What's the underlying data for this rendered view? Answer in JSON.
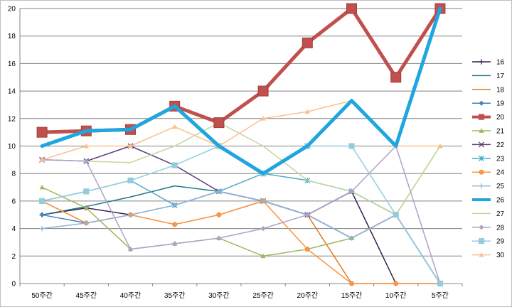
{
  "chart_data": {
    "type": "line",
    "title": "",
    "xlabel": "",
    "ylabel": "",
    "x": [
      "50주간",
      "45주간",
      "40주간",
      "35주간",
      "30주간",
      "25주간",
      "20주간",
      "15주간",
      "10주간",
      "5주간"
    ],
    "ylim": [
      0,
      20
    ],
    "yticks": [
      0,
      2,
      4,
      6,
      8,
      10,
      12,
      14,
      16,
      18,
      20
    ],
    "grid": true,
    "legend_position": "right",
    "series": [
      {
        "name": "16",
        "color": "#3b1f4e",
        "marker": "plus",
        "width": 1.5,
        "values": [
          5,
          5.5,
          5,
          null,
          null,
          6,
          5,
          6.7,
          0,
          null
        ]
      },
      {
        "name": "17",
        "color": "#1f7a8c",
        "marker": "none",
        "width": 1.5,
        "values": [
          5,
          5.6,
          6.3,
          7.1,
          6.7,
          6,
          5,
          3.3,
          5,
          0
        ]
      },
      {
        "name": "18",
        "color": "#e07b20",
        "marker": "none",
        "width": 1.5,
        "values": [
          6,
          4.4,
          5,
          4.3,
          5,
          6,
          5,
          0,
          0,
          0
        ]
      },
      {
        "name": "19",
        "color": "#4a7ebb",
        "marker": "diamond",
        "width": 1.5,
        "values": [
          5,
          4.4,
          5,
          5.7,
          6.7,
          6,
          5,
          3.3,
          5,
          0
        ]
      },
      {
        "name": "20",
        "color": "#c0504d",
        "marker": "square-big",
        "width": 5,
        "values": [
          11,
          11.1,
          11.2,
          12.9,
          11.7,
          14,
          17.5,
          20,
          15,
          20
        ]
      },
      {
        "name": "21",
        "color": "#9bbb59",
        "marker": "triangle",
        "width": 1.5,
        "values": [
          7,
          5.5,
          2.5,
          2.9,
          3.3,
          2,
          2.5,
          3.3,
          5,
          10
        ]
      },
      {
        "name": "22",
        "color": "#5c3f7a",
        "marker": "x",
        "width": 1.5,
        "values": [
          9,
          8.9,
          10,
          8.6,
          6.7,
          6,
          5,
          6.7,
          5,
          0
        ]
      },
      {
        "name": "23",
        "color": "#4bacc6",
        "marker": "star",
        "width": 1.5,
        "values": [
          6,
          6.7,
          7.5,
          5.7,
          6.7,
          8,
          7.5,
          6.7,
          5,
          0
        ]
      },
      {
        "name": "24",
        "color": "#f79646",
        "marker": "circle",
        "width": 1.5,
        "values": [
          6,
          4.4,
          5,
          4.3,
          5,
          6,
          2.5,
          0,
          0,
          0
        ]
      },
      {
        "name": "25",
        "color": "#95b3d7",
        "marker": "plus",
        "width": 1.5,
        "values": [
          4,
          4.4,
          5,
          5.7,
          6.7,
          6,
          5,
          3.3,
          5,
          0
        ]
      },
      {
        "name": "26",
        "color": "#1fa6e0",
        "marker": "none",
        "width": 5,
        "values": [
          10,
          11.1,
          11.2,
          12.9,
          10,
          8,
          10,
          13.3,
          10,
          20
        ]
      },
      {
        "name": "27",
        "color": "#c4d79b",
        "marker": "none",
        "width": 1.5,
        "values": [
          9,
          8.9,
          8.8,
          10,
          11.7,
          10,
          7.5,
          6.7,
          5,
          10
        ]
      },
      {
        "name": "28",
        "color": "#b1a0c7",
        "marker": "diamond",
        "width": 1.5,
        "values": [
          9,
          8.9,
          2.5,
          2.9,
          3.3,
          4,
          5,
          6.7,
          10,
          0
        ]
      },
      {
        "name": "29",
        "color": "#93cddd",
        "marker": "square",
        "width": 1.5,
        "values": [
          6,
          6.7,
          7.5,
          8.6,
          10,
          8,
          10,
          10,
          5,
          0
        ]
      },
      {
        "name": "30",
        "color": "#fac08f",
        "marker": "triangle",
        "width": 1.5,
        "values": [
          9,
          10,
          10,
          11.4,
          10,
          12,
          12.5,
          13.3,
          10,
          10
        ]
      }
    ]
  }
}
